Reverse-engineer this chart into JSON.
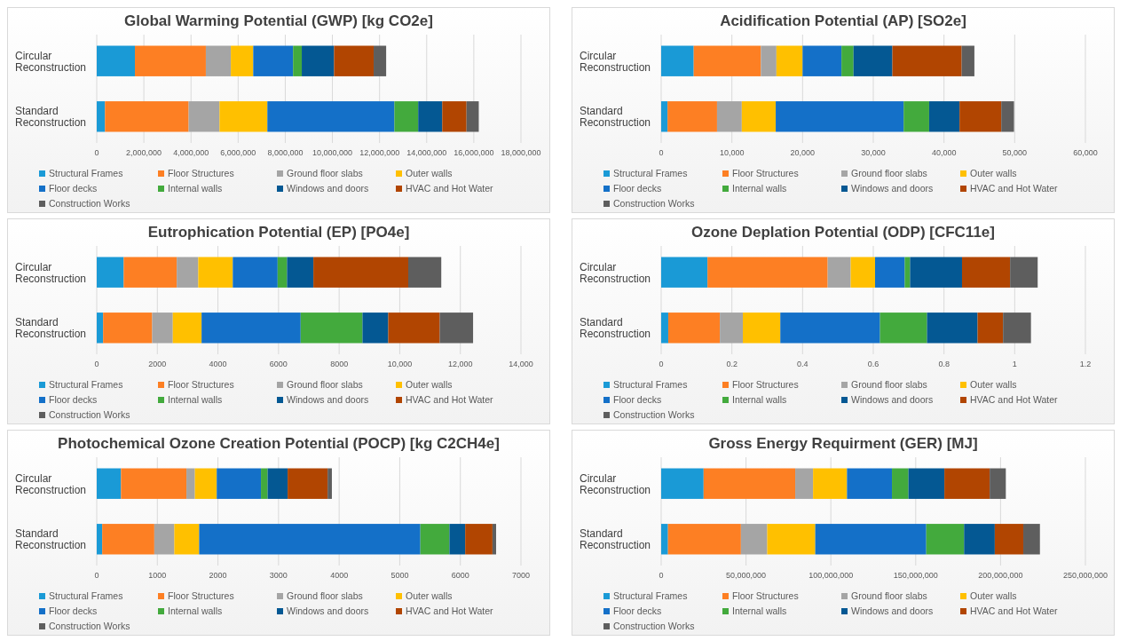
{
  "chart_data": [
    {
      "type": "bar",
      "orientation": "horizontal",
      "stacked": true,
      "title": "Global Warming Potential (GWP) [kg CO2e]",
      "categories": [
        "Circular Reconstruction",
        "Standard Reconstruction"
      ],
      "xlim": [
        0,
        18000000
      ],
      "xticks": [
        0,
        {
          "value": 2000000,
          "label": "2,000,000"
        },
        {
          "value": 4000000,
          "label": "4,000,000"
        },
        {
          "value": 6000000,
          "label": "6,000,000"
        },
        {
          "value": 8000000,
          "label": "8,000,000"
        },
        {
          "value": 10000000,
          "label": "10,000,000"
        },
        {
          "value": 12000000,
          "label": "12,000,000"
        },
        {
          "value": 14000000,
          "label": "14,000,000"
        },
        {
          "value": 16000000,
          "label": "16,000,000"
        },
        {
          "value": 18000000,
          "label": "18,000,000"
        }
      ],
      "grid": "x",
      "legend": "bottom",
      "series": [
        {
          "name": "Structural Frames",
          "color": "#1a9ad6",
          "values": [
            1620000,
            350000
          ]
        },
        {
          "name": "Floor Structures",
          "color": "#fd7f23",
          "values": [
            3010000,
            3550000
          ]
        },
        {
          "name": "Ground floor slabs",
          "color": "#a5a5a5",
          "values": [
            1060000,
            1310000
          ]
        },
        {
          "name": "Outer walls",
          "color": "#ffc000",
          "values": [
            950000,
            2030000
          ]
        },
        {
          "name": "Floor decks",
          "color": "#1470c8",
          "values": [
            1690000,
            5390000
          ]
        },
        {
          "name": "Internal walls",
          "color": "#43aa3d",
          "values": [
            370000,
            1010000
          ]
        },
        {
          "name": "Windows and doors",
          "color": "#045893",
          "values": [
            1370000,
            1020000
          ]
        },
        {
          "name": "HVAC and Hot Water",
          "color": "#b14501",
          "values": [
            1680000,
            1030000
          ]
        },
        {
          "name": "Construction Works",
          "color": "#5e5e5e",
          "values": [
            530000,
            520000
          ]
        }
      ]
    },
    {
      "type": "bar",
      "orientation": "horizontal",
      "stacked": true,
      "title": "Acidification Potential (AP) [SO2e]",
      "categories": [
        "Circular Reconstruction",
        "Standard Reconstruction"
      ],
      "xlim": [
        0,
        60000
      ],
      "xticks": [
        0,
        {
          "value": 10000,
          "label": "10,000"
        },
        {
          "value": 20000,
          "label": "20,000"
        },
        {
          "value": 30000,
          "label": "30,000"
        },
        {
          "value": 40000,
          "label": "40,000"
        },
        {
          "value": 50000,
          "label": "50,000"
        },
        {
          "value": 60000,
          "label": "60,000"
        }
      ],
      "grid": "x",
      "legend": "bottom",
      "series": [
        {
          "name": "Structural Frames",
          "color": "#1a9ad6",
          "values": [
            4600,
            900
          ]
        },
        {
          "name": "Floor Structures",
          "color": "#fd7f23",
          "values": [
            9500,
            7000
          ]
        },
        {
          "name": "Ground floor slabs",
          "color": "#a5a5a5",
          "values": [
            2200,
            3500
          ]
        },
        {
          "name": "Outer walls",
          "color": "#ffc000",
          "values": [
            3700,
            4800
          ]
        },
        {
          "name": "Floor decks",
          "color": "#1470c8",
          "values": [
            5500,
            18100
          ]
        },
        {
          "name": "Internal walls",
          "color": "#43aa3d",
          "values": [
            1700,
            3600
          ]
        },
        {
          "name": "Windows and doors",
          "color": "#045893",
          "values": [
            5500,
            4300
          ]
        },
        {
          "name": "HVAC and Hot Water",
          "color": "#b14501",
          "values": [
            9800,
            5900
          ]
        },
        {
          "name": "Construction Works",
          "color": "#5e5e5e",
          "values": [
            1800,
            1800
          ]
        }
      ]
    },
    {
      "type": "bar",
      "orientation": "horizontal",
      "stacked": true,
      "title": "Eutrophication Potential (EP) [PO4e]",
      "categories": [
        "Circular Reconstruction",
        "Standard Reconstruction"
      ],
      "xlim": [
        0,
        14000
      ],
      "xticks": [
        0,
        2000,
        4000,
        6000,
        8000,
        {
          "value": 10000,
          "label": "10,000"
        },
        {
          "value": 12000,
          "label": "12,000"
        },
        {
          "value": 14000,
          "label": "14,000"
        }
      ],
      "grid": "x",
      "legend": "bottom",
      "series": [
        {
          "name": "Structural Frames",
          "color": "#1a9ad6",
          "values": [
            890,
            210
          ]
        },
        {
          "name": "Floor Structures",
          "color": "#fd7f23",
          "values": [
            1750,
            1620
          ]
        },
        {
          "name": "Ground floor slabs",
          "color": "#a5a5a5",
          "values": [
            710,
            680
          ]
        },
        {
          "name": "Outer walls",
          "color": "#ffc000",
          "values": [
            1140,
            950
          ]
        },
        {
          "name": "Floor decks",
          "color": "#1470c8",
          "values": [
            1480,
            3270
          ]
        },
        {
          "name": "Internal walls",
          "color": "#43aa3d",
          "values": [
            310,
            2040
          ]
        },
        {
          "name": "Windows and doors",
          "color": "#045893",
          "values": [
            870,
            850
          ]
        },
        {
          "name": "HVAC and Hot Water",
          "color": "#b14501",
          "values": [
            3130,
            1700
          ]
        },
        {
          "name": "Construction Works",
          "color": "#5e5e5e",
          "values": [
            1090,
            1100
          ]
        }
      ]
    },
    {
      "type": "bar",
      "orientation": "horizontal",
      "stacked": true,
      "title": "Ozone Deplation Potential (ODP) [CFC11e]",
      "categories": [
        "Circular Reconstruction",
        "Standard Reconstruction"
      ],
      "xlim": [
        0,
        1.2
      ],
      "xticks": [
        0,
        0.2,
        0.4,
        0.6,
        0.8,
        1,
        1.2
      ],
      "grid": "x",
      "legend": "bottom",
      "series": [
        {
          "name": "Structural Frames",
          "color": "#1a9ad6",
          "values": [
            0.131,
            0.02
          ]
        },
        {
          "name": "Floor Structures",
          "color": "#fd7f23",
          "values": [
            0.34,
            0.146
          ]
        },
        {
          "name": "Ground floor slabs",
          "color": "#a5a5a5",
          "values": [
            0.065,
            0.065
          ]
        },
        {
          "name": "Outer walls",
          "color": "#ffc000",
          "values": [
            0.069,
            0.106
          ]
        },
        {
          "name": "Floor decks",
          "color": "#1470c8",
          "values": [
            0.084,
            0.282
          ]
        },
        {
          "name": "Internal walls",
          "color": "#43aa3d",
          "values": [
            0.015,
            0.133
          ]
        },
        {
          "name": "Windows and doors",
          "color": "#045893",
          "values": [
            0.147,
            0.143
          ]
        },
        {
          "name": "HVAC and Hot Water",
          "color": "#b14501",
          "values": [
            0.136,
            0.072
          ]
        },
        {
          "name": "Construction Works",
          "color": "#5e5e5e",
          "values": [
            0.078,
            0.079
          ]
        }
      ]
    },
    {
      "type": "bar",
      "orientation": "horizontal",
      "stacked": true,
      "title": "Photochemical Ozone Creation Potential (POCP) [kg C2CH4e]",
      "categories": [
        "Circular Reconstruction",
        "Standard Reconstruction"
      ],
      "xlim": [
        0,
        7000
      ],
      "xticks": [
        0,
        1000,
        2000,
        3000,
        4000,
        5000,
        6000,
        7000
      ],
      "grid": "x",
      "legend": "bottom",
      "series": [
        {
          "name": "Structural Frames",
          "color": "#1a9ad6",
          "values": [
            400,
            90
          ]
        },
        {
          "name": "Floor Structures",
          "color": "#fd7f23",
          "values": [
            1080,
            860
          ]
        },
        {
          "name": "Ground floor slabs",
          "color": "#a5a5a5",
          "values": [
            140,
            330
          ]
        },
        {
          "name": "Outer walls",
          "color": "#ffc000",
          "values": [
            360,
            410
          ]
        },
        {
          "name": "Floor decks",
          "color": "#1470c8",
          "values": [
            730,
            3650
          ]
        },
        {
          "name": "Internal walls",
          "color": "#43aa3d",
          "values": [
            110,
            480
          ]
        },
        {
          "name": "Windows and doors",
          "color": "#045893",
          "values": [
            330,
            260
          ]
        },
        {
          "name": "HVAC and Hot Water",
          "color": "#b14501",
          "values": [
            660,
            450
          ]
        },
        {
          "name": "Construction Works",
          "color": "#5e5e5e",
          "values": [
            70,
            60
          ]
        }
      ]
    },
    {
      "type": "bar",
      "orientation": "horizontal",
      "stacked": true,
      "title": "Gross Energy Requirment (GER) [MJ]",
      "categories": [
        "Circular Reconstruction",
        "Standard Reconstruction"
      ],
      "xlim": [
        0,
        250000000
      ],
      "xticks": [
        0,
        {
          "value": 50000000,
          "label": "50,000,000"
        },
        {
          "value": 100000000,
          "label": "100,000,000"
        },
        {
          "value": 150000000,
          "label": "150,000,000"
        },
        {
          "value": 200000000,
          "label": "200,000,000"
        },
        {
          "value": 250000000,
          "label": "250,000,000"
        }
      ],
      "grid": "x",
      "legend": "bottom",
      "series": [
        {
          "name": "Structural Frames",
          "color": "#1a9ad6",
          "values": [
            25000000,
            4000000
          ]
        },
        {
          "name": "Floor Structures",
          "color": "#fd7f23",
          "values": [
            54000000,
            43000000
          ]
        },
        {
          "name": "Ground floor slabs",
          "color": "#a5a5a5",
          "values": [
            10500000,
            15500000
          ]
        },
        {
          "name": "Outer walls",
          "color": "#ffc000",
          "values": [
            20000000,
            28300000
          ]
        },
        {
          "name": "Floor decks",
          "color": "#1470c8",
          "values": [
            26500000,
            65400000
          ]
        },
        {
          "name": "Internal walls",
          "color": "#43aa3d",
          "values": [
            9700000,
            22300000
          ]
        },
        {
          "name": "Windows and doors",
          "color": "#045893",
          "values": [
            21200000,
            18100000
          ]
        },
        {
          "name": "HVAC and Hot Water",
          "color": "#b14501",
          "values": [
            26700000,
            16800000
          ]
        },
        {
          "name": "Construction Works",
          "color": "#5e5e5e",
          "values": [
            9500000,
            9800000
          ]
        }
      ]
    }
  ]
}
